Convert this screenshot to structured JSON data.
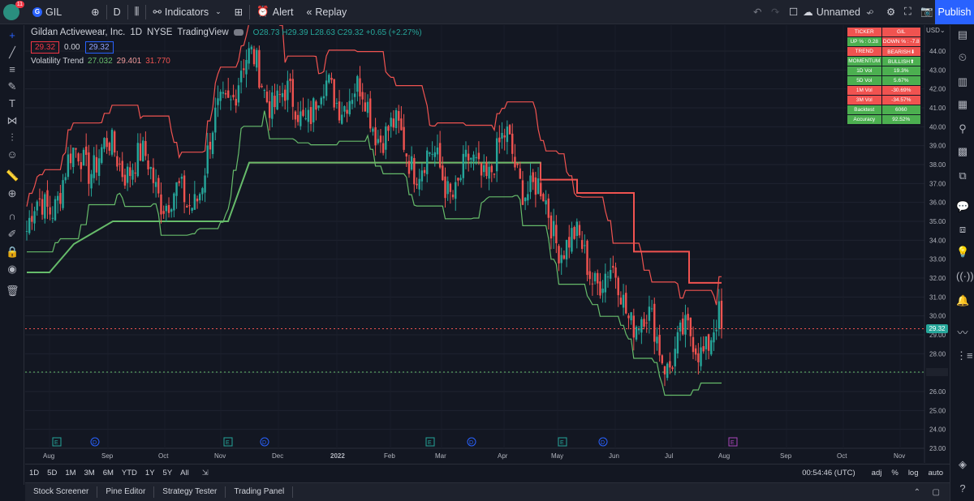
{
  "topbar": {
    "notification_count": "11",
    "symbol": "GIL",
    "interval": "D",
    "indicators_label": "Indicators",
    "alert_label": "Alert",
    "replay_label": "Replay",
    "layout_name": "Unnamed",
    "publish_label": "Publish"
  },
  "legend": {
    "title": "Gildan Activewear, Inc.",
    "interval": "1D",
    "exchange": "NYSE",
    "source": "TradingView",
    "open": "O28.73",
    "high": "H29.39",
    "low": "L28.63",
    "close": "C29.32",
    "change": "+0.65 (+2.27%)",
    "bid": "29.32",
    "spread": "0.00",
    "ask": "29.32",
    "indicator_name": "Volatility Trend",
    "ind_v1": "27.032",
    "ind_v2": "29.401",
    "ind_v3": "31.770"
  },
  "info_table": [
    {
      "left": "TICKER",
      "right": "GIL",
      "lc": "red",
      "rc": "red"
    },
    {
      "left": "UP % : 0.28",
      "right": "DOWN % : -7.8",
      "lc": "green",
      "rc": "red"
    },
    {
      "left": "TREND",
      "right": "BEARISH⬇",
      "lc": "red",
      "rc": "red"
    },
    {
      "left": "MOMENTUM",
      "right": "BULLISH⬆",
      "lc": "green",
      "rc": "green"
    },
    {
      "left": "1D Vol",
      "right": "19.3%",
      "lc": "green",
      "rc": "green"
    },
    {
      "left": "5D Vol",
      "right": "5.67%",
      "lc": "green",
      "rc": "green"
    },
    {
      "left": "1M Vol",
      "right": "-30.69%",
      "lc": "red",
      "rc": "red"
    },
    {
      "left": "3M Vol",
      "right": "-34.57%",
      "lc": "red",
      "rc": "red"
    },
    {
      "left": "Backtest",
      "right": "6060",
      "lc": "green",
      "rc": "green"
    },
    {
      "left": "Accuracy",
      "right": "92.52%",
      "lc": "green",
      "rc": "green"
    }
  ],
  "price_axis": {
    "currency": "USD",
    "ticks": [
      "44.00",
      "43.00",
      "42.00",
      "41.00",
      "40.00",
      "39.00",
      "38.00",
      "37.00",
      "36.00",
      "35.00",
      "34.00",
      "33.00",
      "32.00",
      "31.00",
      "30.00",
      "29.00",
      "28.00",
      "27.00",
      "26.00",
      "25.00",
      "24.00",
      "23.00"
    ],
    "last_price_label": "29.32"
  },
  "time_axis": {
    "labels": [
      "Aug",
      "Sep",
      "Oct",
      "Nov",
      "Dec",
      "2022",
      "Feb",
      "Mar",
      "Apr",
      "May",
      "Jun",
      "Jul",
      "Aug",
      "Sep",
      "Oct",
      "Nov"
    ]
  },
  "event_markers": [
    "E",
    "D",
    "E",
    "D",
    "E",
    "D",
    "E",
    "D",
    "E"
  ],
  "range_bar": {
    "ranges": [
      "1D",
      "5D",
      "1M",
      "3M",
      "6M",
      "YTD",
      "1Y",
      "5Y",
      "All"
    ],
    "clock": "00:54:46 (UTC)",
    "adj": "adj",
    "percent": "%",
    "log": "log",
    "auto": "auto"
  },
  "bottom_tabs": [
    "Stock Screener",
    "Pine Editor",
    "Strategy Tester",
    "Trading Panel"
  ],
  "colors": {
    "up": "#26a69a",
    "down": "#ef5350",
    "upper_band": "#f05350",
    "lower_band": "#66bb6a",
    "accent": "#2962ff"
  },
  "chart_data": {
    "type": "candlestick",
    "price_scale": [
      23,
      44
    ],
    "last_price": 29.32,
    "support_level": 27.03,
    "upper_trend_steps": [
      {
        "from": "Oct 2021",
        "to": "Apr 2022",
        "value": 38.1
      },
      {
        "from": "Apr 2022",
        "to": "Apr 2022",
        "value": 37.2
      },
      {
        "from": "Apr 2022",
        "to": "Jun 2022",
        "value": 36.5
      },
      {
        "from": "Jun 2022",
        "to": "Jun 2022",
        "value": 33.4
      },
      {
        "from": "Jun 2022",
        "to": "Aug 2022",
        "value": 31.75
      }
    ],
    "lower_trend_steps": [
      {
        "from": "Jul 2021",
        "to": "Aug 2021",
        "value": 32.3
      },
      {
        "from": "Aug 2021",
        "to": "Oct 2021",
        "value": 35.0
      },
      {
        "from": "Oct 2021",
        "to": "Apr 2022",
        "value": 38.1
      }
    ],
    "close_path": [
      {
        "x": "Jul 2021",
        "y": 34.5
      },
      {
        "x": "Aug 2021",
        "y": 38.5
      },
      {
        "x": "Sep 2021",
        "y": 38.3
      },
      {
        "x": "Oct 2021",
        "y": 35.5
      },
      {
        "x": "Nov 2021",
        "y": 43.5
      },
      {
        "x": "Dec 2021",
        "y": 40.8
      },
      {
        "x": "Jan 2022",
        "y": 42.0
      },
      {
        "x": "Feb 2022",
        "y": 39.0
      },
      {
        "x": "Mar 2022",
        "y": 37.0
      },
      {
        "x": "Apr 2022",
        "y": 38.8
      },
      {
        "x": "May 2022",
        "y": 34.2
      },
      {
        "x": "Jun 2022",
        "y": 31.5
      },
      {
        "x": "Jul 2022",
        "y": 28.0
      },
      {
        "x": "Aug 2022",
        "y": 29.32
      }
    ]
  }
}
